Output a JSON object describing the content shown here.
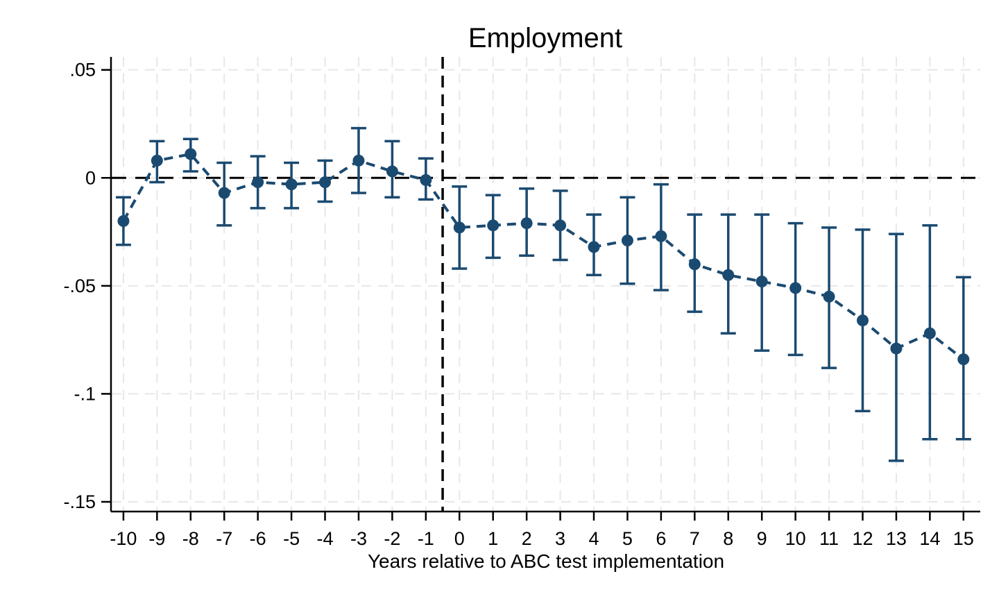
{
  "chart_data": {
    "type": "scatter",
    "subtype": "event-study-with-error-bars",
    "title": "Employment",
    "xlabel": "Years relative to ABC test implementation",
    "ylabel": "",
    "x": [
      -10,
      -9,
      -8,
      -7,
      -6,
      -5,
      -4,
      -3,
      -2,
      -1,
      0,
      1,
      2,
      3,
      4,
      5,
      6,
      7,
      8,
      9,
      10,
      11,
      12,
      13,
      14,
      15
    ],
    "series": [
      {
        "name": "coefficient",
        "values": [
          -0.02,
          0.008,
          0.011,
          -0.007,
          -0.002,
          -0.003,
          -0.002,
          0.008,
          0.003,
          -0.001,
          -0.023,
          -0.022,
          -0.021,
          -0.022,
          -0.032,
          -0.029,
          -0.027,
          -0.04,
          -0.045,
          -0.048,
          -0.051,
          -0.055,
          -0.066,
          -0.079,
          -0.072,
          -0.084
        ]
      },
      {
        "name": "ci_lower",
        "values": [
          -0.031,
          -0.002,
          0.003,
          -0.022,
          -0.014,
          -0.014,
          -0.011,
          -0.007,
          -0.009,
          -0.01,
          -0.042,
          -0.037,
          -0.036,
          -0.038,
          -0.045,
          -0.049,
          -0.052,
          -0.062,
          -0.072,
          -0.08,
          -0.082,
          -0.088,
          -0.108,
          -0.131,
          -0.121,
          -0.121
        ]
      },
      {
        "name": "ci_upper",
        "values": [
          -0.009,
          0.017,
          0.018,
          0.007,
          0.01,
          0.007,
          0.008,
          0.023,
          0.017,
          0.009,
          -0.004,
          -0.008,
          -0.005,
          -0.006,
          -0.017,
          -0.009,
          -0.003,
          -0.017,
          -0.017,
          -0.017,
          -0.021,
          -0.023,
          -0.024,
          -0.026,
          -0.022,
          -0.046
        ]
      }
    ],
    "x_tick_labels": [
      "-10",
      "-9",
      "-8",
      "-7",
      "-6",
      "-5",
      "-4",
      "-3",
      "-2",
      "-1",
      "0",
      "1",
      "2",
      "3",
      "4",
      "5",
      "6",
      "7",
      "8",
      "9",
      "10",
      "11",
      "12",
      "13",
      "14",
      "15"
    ],
    "y_ticks": [
      0.05,
      0,
      -0.05,
      -0.1,
      -0.15
    ],
    "y_tick_labels": [
      ".05",
      "0",
      "-.05",
      "-.1",
      "-.15"
    ],
    "xlim": [
      -10.37,
      15.5
    ],
    "ylim": [
      -0.1545,
      0.056
    ],
    "reference_lines": {
      "horizontal_y": 0,
      "vertical_x": -0.5
    },
    "grid": true,
    "legend": false,
    "colors": {
      "series": "#1b4a70",
      "reference": "#000000",
      "grid": "#e7e7e7",
      "axis": "#000000",
      "background": "#ffffff"
    }
  }
}
